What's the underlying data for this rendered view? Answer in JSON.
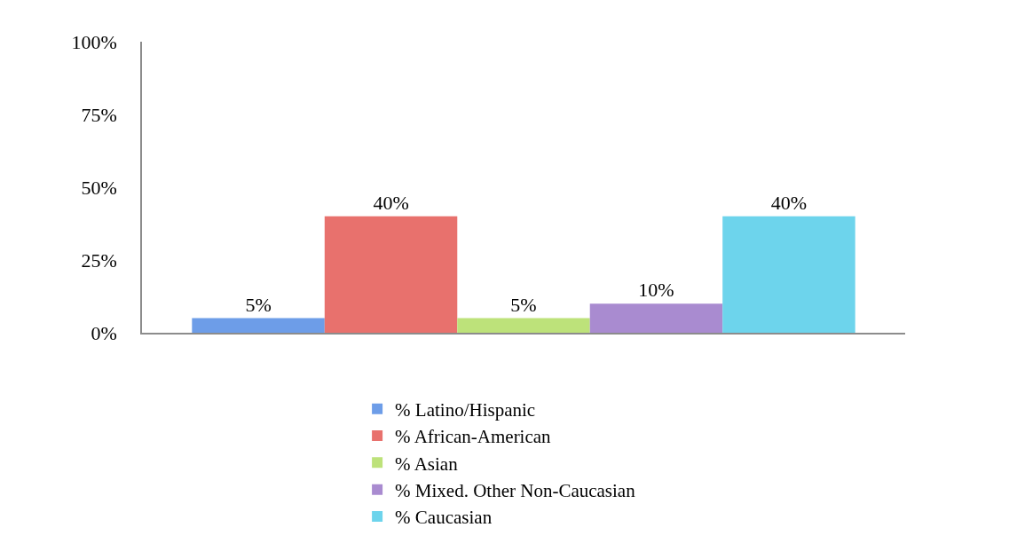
{
  "chart_data": {
    "type": "bar",
    "categories": [
      null
    ],
    "series": [
      {
        "name": "% Latino/Hispanic",
        "color": "#6d9de8",
        "values": [
          5
        ],
        "value_labels": [
          "5%"
        ]
      },
      {
        "name": "% African-American",
        "color": "#e8716d",
        "values": [
          40
        ],
        "value_labels": [
          "40%"
        ]
      },
      {
        "name": "% Asian",
        "color": "#bde27a",
        "values": [
          5
        ],
        "value_labels": [
          "5%"
        ]
      },
      {
        "name": "% Mixed. Other Non-Caucasian",
        "color": "#a98bd0",
        "values": [
          10
        ],
        "value_labels": [
          "10%"
        ]
      },
      {
        "name": "% Caucasian",
        "color": "#6dd4ec",
        "values": [
          40
        ],
        "value_labels": [
          "40%"
        ]
      }
    ],
    "ylim": [
      0,
      100
    ],
    "yticks": [
      {
        "value": 0,
        "label": "0%"
      },
      {
        "value": 25,
        "label": "25%"
      },
      {
        "value": 50,
        "label": "50%"
      },
      {
        "value": 75,
        "label": "75%"
      },
      {
        "value": 100,
        "label": "100%"
      }
    ],
    "tick_labels": "y",
    "legend": "bottom"
  }
}
